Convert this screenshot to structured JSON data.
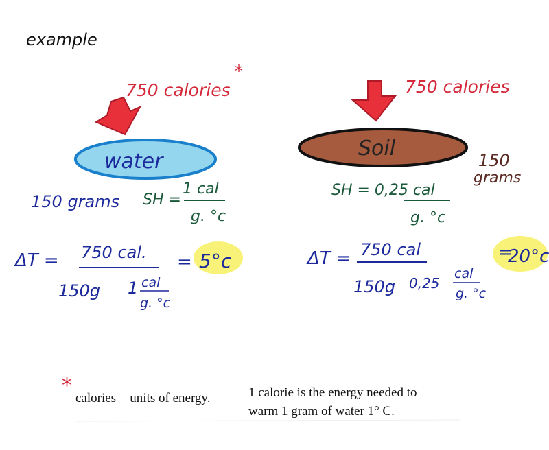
{
  "title": "example",
  "left": {
    "energy": "750 calories",
    "asterisk": "*",
    "substance": "water",
    "mass": "150 grams",
    "sh": {
      "label": "SH =",
      "numerator": "1 cal",
      "denominator": "g. °c"
    },
    "delta": {
      "label": "ΔT =",
      "numerator": "750 cal.",
      "mass": "150g",
      "sh_value": "1",
      "sh_num": "cal",
      "sh_den": "g. °c",
      "equals": "=",
      "result": "5°c"
    }
  },
  "right": {
    "energy": "750 calories",
    "substance": "Soil",
    "mass": [
      "150",
      "grams"
    ],
    "sh": {
      "label": "SH = 0,25 cal",
      "denominator": "g. °c"
    },
    "delta": {
      "label": "ΔT =",
      "numerator": "750 cal",
      "mass": "150g",
      "sh_value": "0,25",
      "sh_num": "cal",
      "sh_den": "g. °c",
      "equals": "=",
      "result": "20°c"
    }
  },
  "footnote": {
    "asterisk": "*",
    "line1a": "calories = units of energy.",
    "line1b": "1 calorie is the energy needed to",
    "line2": "warm 1 gram of water 1° C."
  }
}
